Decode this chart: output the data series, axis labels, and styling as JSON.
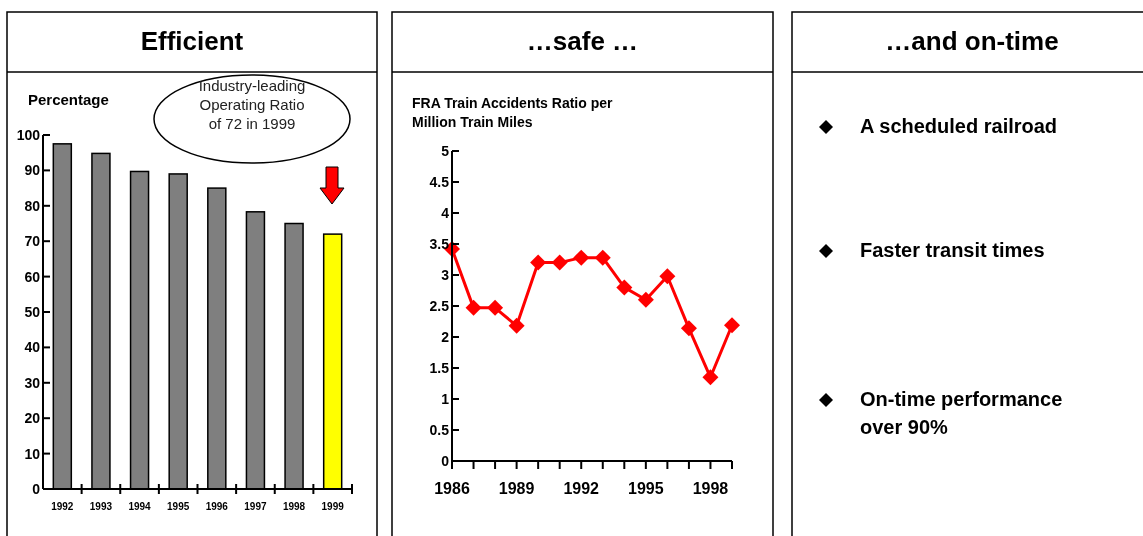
{
  "chart_data": [
    {
      "type": "bar",
      "title": "Efficient",
      "ylabel": "Percentage",
      "annotations": [
        "Industry-leading Operating Ratio of 72 in 1999"
      ],
      "categories": [
        "1992",
        "1993",
        "1994",
        "1995",
        "1996",
        "1997",
        "1998",
        "1999"
      ],
      "values": [
        97.5,
        94.8,
        89.7,
        89,
        85,
        78.3,
        75,
        72
      ],
      "colors": [
        "#7f7f7f",
        "#7f7f7f",
        "#7f7f7f",
        "#7f7f7f",
        "#7f7f7f",
        "#7f7f7f",
        "#7f7f7f",
        "#ffff00"
      ],
      "ylim": [
        0,
        100
      ],
      "yticks": [
        0,
        10,
        20,
        30,
        40,
        50,
        60,
        70,
        80,
        90,
        100
      ]
    },
    {
      "type": "line",
      "title": "…safe …",
      "subtitle": "FRA Train Accidents Ratio per Million Train Miles",
      "x": [
        1986,
        1987,
        1988,
        1989,
        1990,
        1991,
        1992,
        1993,
        1994,
        1995,
        1996,
        1997,
        1998,
        1999
      ],
      "series": [
        {
          "color": "#ff0000",
          "values": [
            3.42,
            2.47,
            2.47,
            2.18,
            3.2,
            3.2,
            3.28,
            3.28,
            2.8,
            2.6,
            2.98,
            2.14,
            1.35,
            2.19
          ]
        }
      ],
      "marker": "diamond",
      "xlim": [
        1986,
        1999
      ],
      "xticks": [
        1986,
        {
          "value": 1987,
          "label": null
        },
        {
          "value": 1988,
          "label": null
        },
        1989,
        {
          "value": 1990,
          "label": null
        },
        {
          "value": 1991,
          "label": null
        },
        1992,
        {
          "value": 1993,
          "label": null
        },
        {
          "value": 1994,
          "label": null
        },
        1995,
        {
          "value": 1996,
          "label": null
        },
        {
          "value": 1997,
          "label": null
        },
        1998,
        {
          "value": 1999,
          "label": null
        }
      ],
      "ylim": [
        0,
        5
      ],
      "yticks": [
        0,
        0.5,
        1,
        1.5,
        2,
        2.5,
        3,
        3.5,
        4,
        4.5,
        5
      ]
    },
    {
      "type": "other",
      "title": "…and on-time",
      "annotations": [
        "A scheduled railroad",
        "Faster transit times",
        "On-time performance over 90%"
      ]
    }
  ]
}
